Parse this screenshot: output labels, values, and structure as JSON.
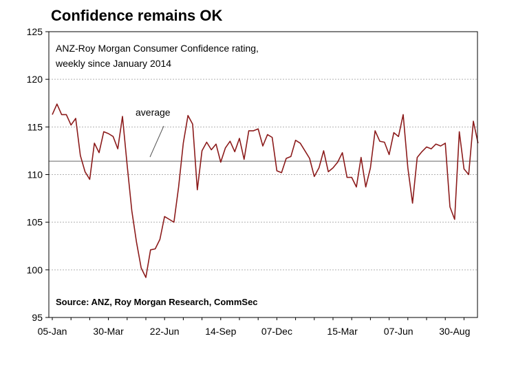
{
  "chart_data": {
    "type": "line",
    "title": "Confidence remains OK",
    "subtitle_lines": [
      "ANZ-Roy Morgan Consumer Confidence rating,",
      "weekly since January 2014"
    ],
    "source": "Source: ANZ, Roy Morgan Research, CommSec",
    "annotation": "average",
    "ylim": [
      95,
      125
    ],
    "yticks": [
      95,
      100,
      105,
      110,
      115,
      120,
      125
    ],
    "x_tick_labels": [
      "05-Jan",
      "30-Mar",
      "22-Jun",
      "14-Sep",
      "07-Dec",
      "15-Mar",
      "07-Jun",
      "30-Aug"
    ],
    "x_tick_indices": [
      0,
      12,
      24,
      36,
      48,
      62,
      74,
      86
    ],
    "average": 111.4,
    "grid": true,
    "colors": {
      "line": "#8b1a1a",
      "average": "#999999",
      "grid": "#b0b0b0"
    },
    "series": [
      {
        "values": [
          116.3,
          117.4,
          116.3,
          116.3,
          115.2,
          115.9,
          112.0,
          110.3,
          109.5,
          113.3,
          112.3,
          114.5,
          114.3,
          114.0,
          112.7,
          116.1,
          111.0,
          106.2,
          102.9,
          100.2,
          99.2,
          102.1,
          102.2,
          103.2,
          105.6,
          105.3,
          105.0,
          108.7,
          113.3,
          116.2,
          115.3,
          108.4,
          112.5,
          113.4,
          112.6,
          113.2,
          111.3,
          112.8,
          113.5,
          112.4,
          113.8,
          111.6,
          114.6,
          114.6,
          114.8,
          113.0,
          114.2,
          113.9,
          110.4,
          110.2,
          111.7,
          111.9,
          113.6,
          113.3,
          112.5,
          111.7,
          109.8,
          110.7,
          112.5,
          110.3,
          110.7,
          111.3,
          112.3,
          109.7,
          109.7,
          108.7,
          111.8,
          108.7,
          110.7,
          114.6,
          113.5,
          113.4,
          112.1,
          114.4,
          114.0,
          116.3,
          110.7,
          107.0,
          111.8,
          112.4,
          112.9,
          112.7,
          113.2,
          113.0,
          113.3,
          106.6,
          105.3,
          114.5,
          110.6,
          110.0,
          115.6,
          113.3
        ]
      }
    ]
  }
}
